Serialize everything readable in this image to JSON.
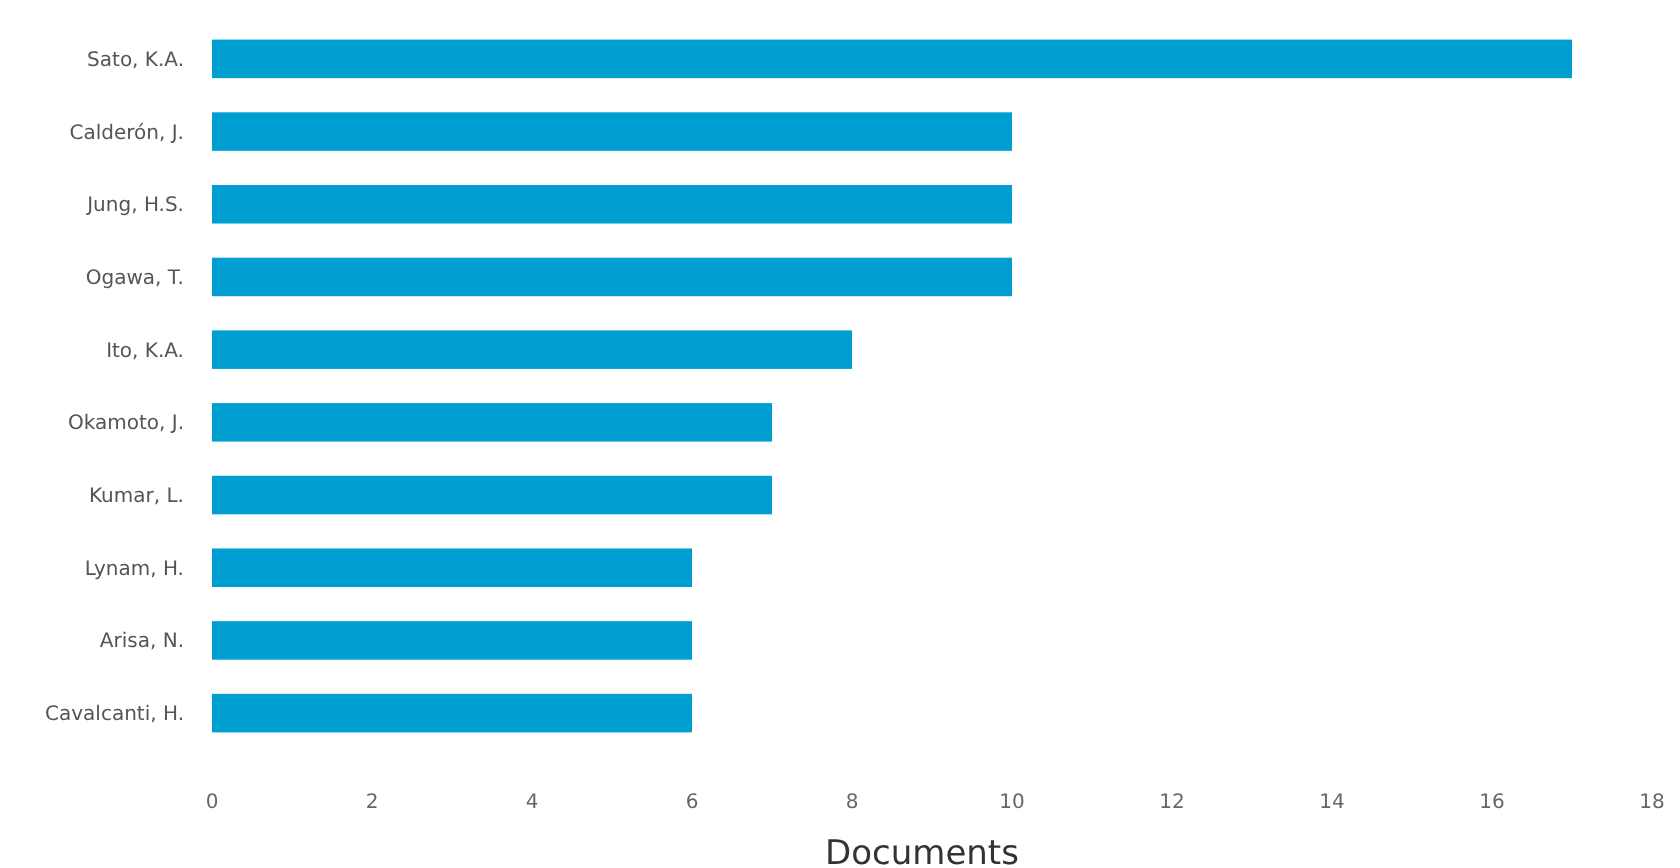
{
  "chart_data": {
    "type": "bar",
    "orientation": "horizontal",
    "xlabel": "Documents",
    "categories": [
      "Sato, K.A.",
      "Calderón, J.",
      "Jung, H.S.",
      "Ogawa, T.",
      "Ito, K.A.",
      "Okamoto, J.",
      "Kumar, L.",
      "Lynam, H.",
      "Arisa, N.",
      "Cavalcanti, H."
    ],
    "values": [
      17,
      10,
      10,
      10,
      8,
      7,
      7,
      6,
      6,
      6
    ],
    "color": "#009fd1",
    "xlim": [
      0,
      18
    ],
    "xticks": [
      0,
      2,
      4,
      6,
      8,
      10,
      12,
      14,
      16,
      18
    ],
    "grid": false
  }
}
